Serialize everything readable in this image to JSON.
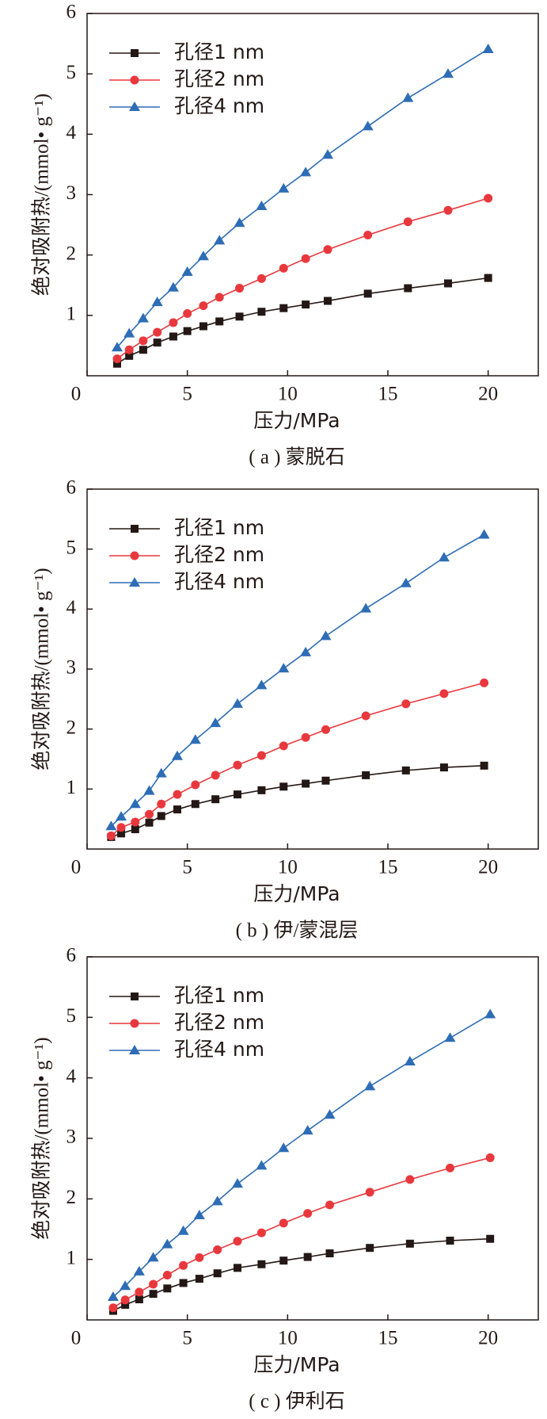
{
  "chart_data": [
    {
      "type": "line",
      "x_label": "压力/MPa",
      "y_label": "绝对吸附热/(mmol• g⁻¹)",
      "caption": "( a ) 蒙脱石",
      "xlim": [
        0,
        22.5
      ],
      "ylim": [
        0,
        6
      ],
      "xticks": [
        0,
        5,
        10,
        15,
        20
      ],
      "yticks": [
        1,
        2,
        3,
        4,
        5,
        6
      ],
      "legend": "upper left",
      "x": [
        1.5,
        2.1,
        2.8,
        3.5,
        4.3,
        5.0,
        5.8,
        6.6,
        7.6,
        8.7,
        9.8,
        10.9,
        12.0,
        14.0,
        16.0,
        18.0,
        20.0
      ],
      "series": [
        {
          "name": "孔径1 nm",
          "color": "#231815",
          "marker": "square",
          "values": [
            0.2,
            0.33,
            0.43,
            0.55,
            0.65,
            0.74,
            0.82,
            0.9,
            0.98,
            1.06,
            1.12,
            1.18,
            1.24,
            1.36,
            1.45,
            1.53,
            1.62
          ]
        },
        {
          "name": "孔径2 nm",
          "color": "#e8383d",
          "marker": "circle",
          "values": [
            0.28,
            0.43,
            0.58,
            0.72,
            0.88,
            1.03,
            1.16,
            1.3,
            1.45,
            1.61,
            1.78,
            1.94,
            2.09,
            2.33,
            2.55,
            2.74,
            2.94
          ]
        },
        {
          "name": "孔径4 nm",
          "color": "#2e6db5",
          "marker": "triangle",
          "values": [
            0.47,
            0.7,
            0.95,
            1.22,
            1.46,
            1.72,
            1.98,
            2.24,
            2.53,
            2.81,
            3.1,
            3.37,
            3.66,
            4.13,
            4.6,
            5.0,
            5.41
          ]
        }
      ]
    },
    {
      "type": "line",
      "x_label": "压力/MPa",
      "y_label": "绝对吸附热/(mmol• g⁻¹)",
      "caption": "( b ) 伊/蒙混层",
      "xlim": [
        0,
        22.5
      ],
      "ylim": [
        0,
        6
      ],
      "xticks": [
        0,
        5,
        10,
        15,
        20
      ],
      "yticks": [
        1,
        2,
        3,
        4,
        5,
        6
      ],
      "legend": "upper left",
      "x": [
        1.2,
        1.7,
        2.4,
        3.1,
        3.7,
        4.5,
        5.4,
        6.4,
        7.5,
        8.7,
        9.8,
        10.9,
        11.9,
        13.9,
        15.9,
        17.8,
        19.8
      ],
      "series": [
        {
          "name": "孔径1 nm",
          "color": "#231815",
          "marker": "square",
          "values": [
            0.2,
            0.26,
            0.33,
            0.44,
            0.55,
            0.66,
            0.75,
            0.83,
            0.91,
            0.98,
            1.04,
            1.09,
            1.14,
            1.23,
            1.31,
            1.36,
            1.39
          ]
        },
        {
          "name": "孔径2 nm",
          "color": "#e8383d",
          "marker": "circle",
          "values": [
            0.22,
            0.36,
            0.45,
            0.58,
            0.75,
            0.91,
            1.07,
            1.23,
            1.4,
            1.56,
            1.72,
            1.86,
            1.99,
            2.22,
            2.42,
            2.59,
            2.77
          ]
        },
        {
          "name": "孔径4 nm",
          "color": "#2e6db5",
          "marker": "triangle",
          "values": [
            0.38,
            0.54,
            0.75,
            0.97,
            1.26,
            1.55,
            1.82,
            2.1,
            2.42,
            2.73,
            3.01,
            3.28,
            3.55,
            4.01,
            4.43,
            4.86,
            5.24
          ]
        }
      ]
    },
    {
      "type": "line",
      "x_label": "压力/MPa",
      "y_label": "绝对吸附热/(mmol• g⁻¹)",
      "caption": "( c ) 伊利石",
      "xlim": [
        0,
        22.5
      ],
      "ylim": [
        0,
        6
      ],
      "xticks": [
        0,
        5,
        10,
        15,
        20
      ],
      "yticks": [
        1,
        2,
        3,
        4,
        5,
        6
      ],
      "legend": "upper left",
      "x": [
        1.3,
        1.9,
        2.6,
        3.3,
        4.0,
        4.8,
        5.6,
        6.5,
        7.5,
        8.7,
        9.8,
        11.0,
        12.1,
        14.1,
        16.1,
        18.1,
        20.1
      ],
      "series": [
        {
          "name": "孔径1 nm",
          "color": "#231815",
          "marker": "square",
          "values": [
            0.15,
            0.25,
            0.34,
            0.43,
            0.52,
            0.61,
            0.68,
            0.77,
            0.86,
            0.92,
            0.98,
            1.04,
            1.1,
            1.19,
            1.26,
            1.31,
            1.34
          ]
        },
        {
          "name": "孔径2 nm",
          "color": "#e8383d",
          "marker": "circle",
          "values": [
            0.2,
            0.33,
            0.46,
            0.59,
            0.74,
            0.9,
            1.03,
            1.16,
            1.3,
            1.44,
            1.6,
            1.76,
            1.9,
            2.11,
            2.32,
            2.51,
            2.68
          ]
        },
        {
          "name": "孔径4 nm",
          "color": "#2e6db5",
          "marker": "triangle",
          "values": [
            0.38,
            0.56,
            0.8,
            1.03,
            1.25,
            1.47,
            1.73,
            1.96,
            2.25,
            2.55,
            2.84,
            3.13,
            3.39,
            3.86,
            4.27,
            4.66,
            5.05
          ]
        }
      ]
    }
  ]
}
